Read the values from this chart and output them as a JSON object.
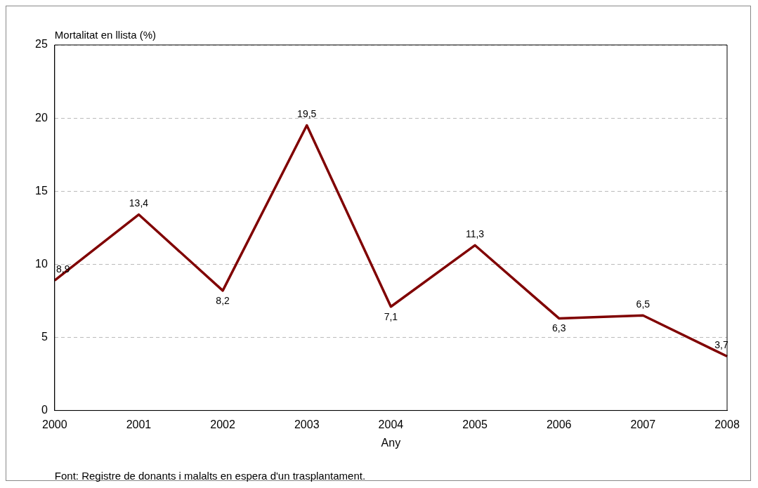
{
  "chart_data": {
    "type": "line",
    "ylabel": "Mortalitat en llista (%)",
    "xlabel": "Any",
    "categories": [
      "2000",
      "2001",
      "2002",
      "2003",
      "2004",
      "2005",
      "2006",
      "2007",
      "2008"
    ],
    "values": [
      8.9,
      13.4,
      8.2,
      19.5,
      7.1,
      11.3,
      6.3,
      6.5,
      3.7
    ],
    "value_labels": [
      "8,9",
      "13,4",
      "8,2",
      "19,5",
      "7,1",
      "11,3",
      "6,3",
      "6,5",
      "3,7"
    ],
    "color": "#800000",
    "ylim": [
      0,
      25
    ],
    "yticks": [
      0,
      5,
      10,
      15,
      20,
      25
    ],
    "grid": "y",
    "marker": "none",
    "line_style": "solid",
    "legend": false,
    "annotations": [
      "Font: Registre de donants i malalts en espera d'un trasplantament."
    ]
  }
}
